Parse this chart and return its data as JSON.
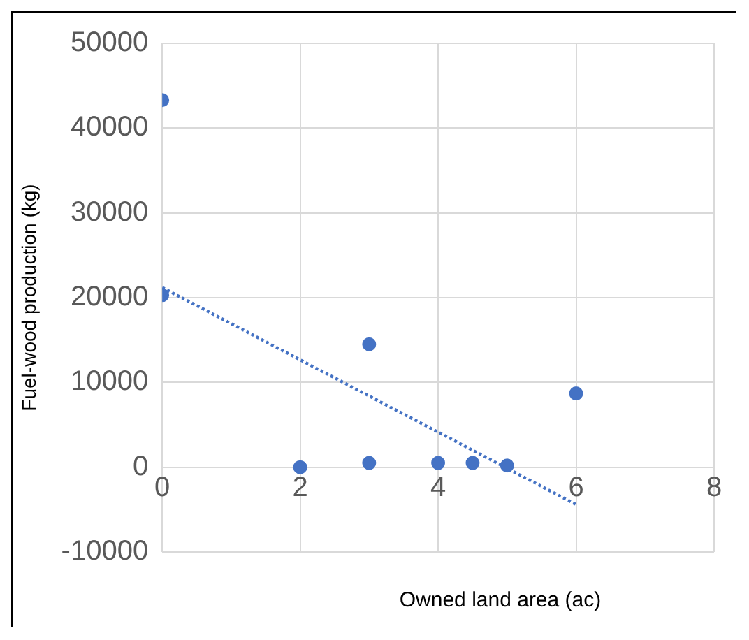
{
  "chart_data": {
    "type": "scatter",
    "xlabel": "Owned land area (ac)",
    "ylabel": "Fuel-wood production (kg)",
    "series": [
      {
        "color": "#4472c4",
        "x": [
          0,
          0,
          2,
          3,
          3,
          4,
          4.5,
          5,
          6
        ],
        "values": [
          43300,
          20300,
          0,
          14500,
          500,
          500,
          500,
          200,
          8700
        ]
      },
      {
        "type": "line",
        "color": "#4472c4",
        "line_style": "dotted",
        "marker": "none",
        "x": [
          0,
          6
        ],
        "values": [
          21200,
          -4400
        ]
      }
    ],
    "xlim": [
      0,
      8
    ],
    "xticks": [
      0,
      2,
      4,
      6,
      8
    ],
    "ylim": [
      -10000,
      50000
    ],
    "yticks": [
      -10000,
      0,
      10000,
      20000,
      30000,
      40000,
      50000
    ],
    "grid": true,
    "legend": false,
    "marker": "circle"
  }
}
